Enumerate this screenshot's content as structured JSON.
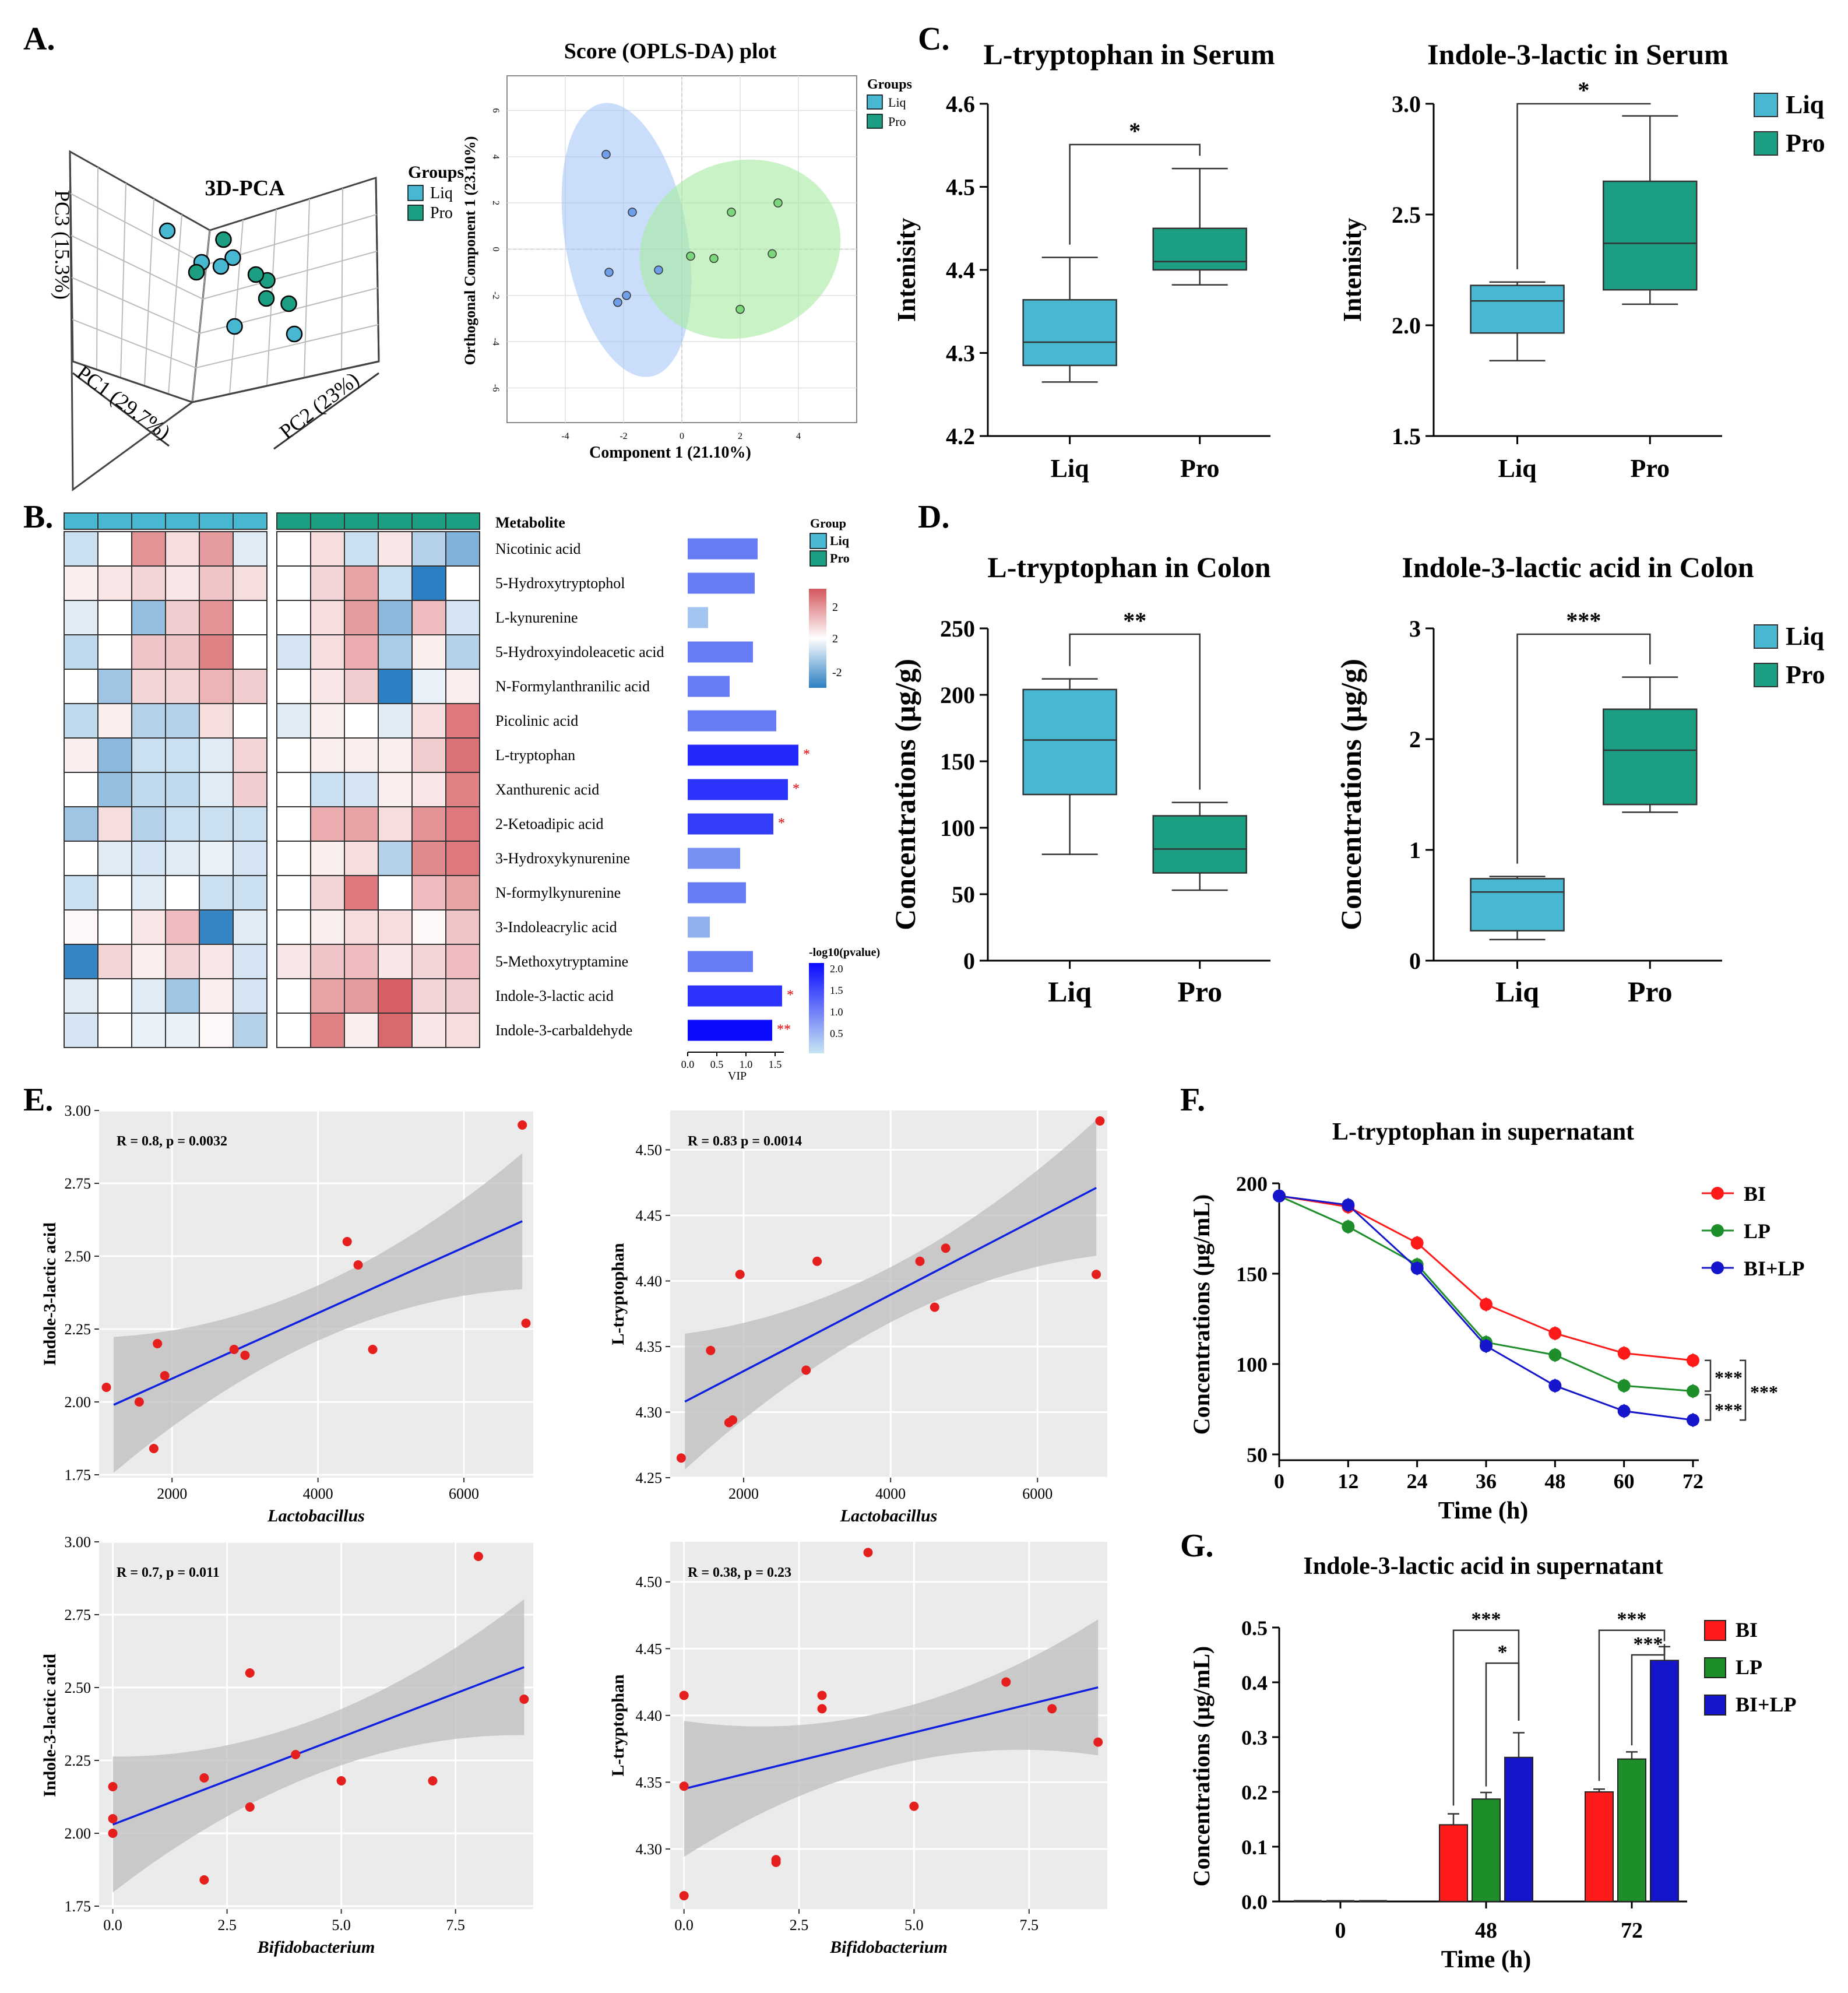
{
  "colors": {
    "liq": "#47B7D2",
    "pro": "#1B9E82",
    "bi": "#FF1A1A",
    "lp": "#1E8E2A",
    "bilp": "#1515CC",
    "reg": "#1020E0",
    "point": "#E51E1E",
    "heat_pos": "#D4585E",
    "heat_neg": "#2B7FC2"
  },
  "panel_letters": {
    "A": "A.",
    "B": "B.",
    "C": "C.",
    "D": "D.",
    "E": "E.",
    "F": "F.",
    "G": "G."
  },
  "chart_data": [
    {
      "id": "pca3d",
      "type": "scatter",
      "title": "3D-PCA",
      "axes": {
        "pc1": "PC1 (29.7%)",
        "pc2": "PC2 (23%)",
        "pc3": "PC3 (15.3%)"
      },
      "legend": {
        "title": "Groups",
        "items": [
          "Liq",
          "Pro"
        ]
      },
      "points": [
        {
          "group": "Liq",
          "x": -0.7,
          "y": 0.5,
          "z": 0.9
        },
        {
          "group": "Liq",
          "x": 0.4,
          "y": 0.9,
          "z": 0.9
        },
        {
          "group": "Liq",
          "x": 0.1,
          "y": 0.5,
          "z": 0.6
        },
        {
          "group": "Liq",
          "x": -0.4,
          "y": -0.2,
          "z": 0.3
        },
        {
          "group": "Liq",
          "x": 0.0,
          "y": -0.5,
          "z": -0.5
        },
        {
          "group": "Liq",
          "x": 0.8,
          "y": -0.8,
          "z": -0.6
        },
        {
          "group": "Pro",
          "x": 0.2,
          "y": 0.7,
          "z": 1.0
        },
        {
          "group": "Pro",
          "x": 0.7,
          "y": 0.2,
          "z": 0.4
        },
        {
          "group": "Pro",
          "x": 0.5,
          "y": 0.1,
          "z": 0.4
        },
        {
          "group": "Pro",
          "x": -0.6,
          "y": -0.6,
          "z": 0.0
        },
        {
          "group": "Pro",
          "x": 0.9,
          "y": -0.2,
          "z": 0.0
        },
        {
          "group": "Pro",
          "x": 0.9,
          "y": 0.9,
          "z": 0.5
        }
      ]
    },
    {
      "id": "oplsda",
      "type": "scatter",
      "title": "Score (OPLS-DA) plot",
      "xlabel": "Component 1 (21.10%)",
      "ylabel": "Orthogonal Component 1 (23.10%)",
      "xlim": [
        -6,
        6
      ],
      "ylim": [
        -7.5,
        7.5
      ],
      "xticks": [
        -4,
        -2,
        0,
        2,
        4
      ],
      "yticks": [
        -6,
        -4,
        -2,
        0,
        2,
        4,
        6
      ],
      "legend": {
        "title": "Groups",
        "items": [
          "Liq",
          "Pro"
        ]
      },
      "series": [
        {
          "name": "Liq",
          "x": [
            -2.6,
            -1.7,
            -2.5,
            -0.8,
            -1.9,
            -2.2
          ],
          "y": [
            4.1,
            1.6,
            -1.0,
            -0.9,
            -2.0,
            -2.3
          ]
        },
        {
          "name": "Pro",
          "x": [
            0.3,
            1.1,
            1.7,
            2.0,
            3.1,
            3.3
          ],
          "y": [
            -0.3,
            -0.4,
            1.6,
            -2.6,
            -0.2,
            2.0
          ]
        }
      ]
    },
    {
      "id": "c_trp",
      "type": "box",
      "title": "L-tryptophan in Serum",
      "ylabel": "Intenisity",
      "ylim": [
        4.2,
        4.6
      ],
      "yticks": [
        "4.2",
        "4.3",
        "4.4",
        "4.5",
        "4.6"
      ],
      "categories": [
        "Liq",
        "Pro"
      ],
      "boxes": [
        {
          "min": 4.265,
          "q1": 4.285,
          "median": 4.313,
          "q3": 4.364,
          "max": 4.415
        },
        {
          "min": 4.382,
          "q1": 4.4,
          "median": 4.41,
          "q3": 4.45,
          "max": 4.522
        }
      ],
      "sig": [
        {
          "from": 0,
          "to": 1,
          "label": "*"
        }
      ],
      "legend": []
    },
    {
      "id": "c_ila",
      "type": "box",
      "title": "Indole-3-lactic in Serum",
      "ylabel": "Intenisity",
      "ylim": [
        1.5,
        3.0
      ],
      "yticks": [
        "1.5",
        "2.0",
        "2.5",
        "3.0"
      ],
      "categories": [
        "Liq",
        "Pro"
      ],
      "boxes": [
        {
          "min": 1.84,
          "q1": 1.965,
          "median": 2.11,
          "q3": 2.18,
          "max": 2.195
        },
        {
          "min": 2.095,
          "q1": 2.16,
          "median": 2.37,
          "q3": 2.65,
          "max": 2.945
        }
      ],
      "sig": [
        {
          "from": 0,
          "to": 1,
          "label": "*"
        }
      ],
      "legend": [
        "Liq",
        "Pro"
      ]
    },
    {
      "id": "d_trp",
      "type": "box",
      "title": "L-tryptophan in Colon",
      "ylabel": "Concentrations (μg/g)",
      "ylim": [
        0,
        250
      ],
      "yticks": [
        "0",
        "50",
        "100",
        "150",
        "200",
        "250"
      ],
      "categories": [
        "Liq",
        "Pro"
      ],
      "boxes": [
        {
          "min": 80,
          "q1": 125,
          "median": 166,
          "q3": 204,
          "max": 212
        },
        {
          "min": 53,
          "q1": 66,
          "median": 84,
          "q3": 109,
          "max": 119
        }
      ],
      "sig": [
        {
          "from": 0,
          "to": 1,
          "label": "**"
        }
      ],
      "legend": []
    },
    {
      "id": "d_ila",
      "type": "box",
      "title": "Indole-3-lactic acid in Colon",
      "ylabel": "Concentrations (μg/g)",
      "ylim": [
        0,
        3
      ],
      "yticks": [
        "0",
        "1",
        "2",
        "3"
      ],
      "categories": [
        "Liq",
        "Pro"
      ],
      "boxes": [
        {
          "min": 0.19,
          "q1": 0.27,
          "median": 0.62,
          "q3": 0.74,
          "max": 0.76
        },
        {
          "min": 1.34,
          "q1": 1.41,
          "median": 1.9,
          "q3": 2.27,
          "max": 2.56
        }
      ],
      "sig": [
        {
          "from": 0,
          "to": 1,
          "label": "***"
        }
      ],
      "legend": [
        "Liq",
        "Pro"
      ]
    },
    {
      "id": "heatmap",
      "type": "heatmap",
      "rowTitle": "Metabolite",
      "groups": [
        "Liq",
        "Liq",
        "Liq",
        "Liq",
        "Liq",
        "Liq",
        "Pro",
        "Pro",
        "Pro",
        "Pro",
        "Pro",
        "Pro"
      ],
      "rows": [
        "Nicotinic acid",
        "5-Hydroxytryptophol",
        "L-kynurenine",
        "5-Hydroxyindoleacetic acid",
        "N-Formylanthranilic acid",
        "Picolinic acid",
        "L-tryptophan",
        "Xanthurenic acid",
        "2-Ketoadipic acid",
        "3-Hydroxykynurenine",
        "N-formylkynurenine",
        "3-Indoleacrylic acid",
        "5-Methoxytryptamine",
        "Indole-3-lactic acid",
        "Indole-3-carbaldehyde"
      ],
      "values": [
        [
          -0.5,
          0,
          1.3,
          0.4,
          1.2,
          -0.3,
          0,
          0.4,
          -0.5,
          0.3,
          -0.7,
          -1.2
        ],
        [
          0.2,
          0.3,
          0.5,
          0.3,
          0.7,
          0.4,
          0,
          0.5,
          1.1,
          -0.5,
          -2.3,
          0
        ],
        [
          -0.3,
          0,
          -1.0,
          0.6,
          1.3,
          0,
          0,
          0.4,
          1.2,
          -1.1,
          0.8,
          -0.4
        ],
        [
          -0.6,
          0,
          0.7,
          0.7,
          1.5,
          0,
          -0.4,
          0.4,
          1.0,
          -0.8,
          0.2,
          -0.7
        ],
        [
          0,
          -0.9,
          0.5,
          0.5,
          0.9,
          0.6,
          0,
          0.3,
          0.6,
          -2.1,
          -0.2,
          0.2
        ],
        [
          -0.6,
          0.2,
          -0.7,
          -0.7,
          0.4,
          0,
          -0.3,
          0.2,
          0,
          -0.3,
          0.4,
          1.6
        ],
        [
          0.2,
          -1.1,
          -0.5,
          -0.5,
          -0.3,
          0.5,
          0,
          0.2,
          0.2,
          0.2,
          0.6,
          1.7
        ],
        [
          0,
          -1.0,
          -0.6,
          -0.6,
          -0.3,
          0.6,
          0,
          -0.5,
          -0.4,
          0.2,
          0.3,
          1.5
        ],
        [
          -0.9,
          0.4,
          -0.7,
          -0.5,
          -0.5,
          -0.5,
          0,
          1.0,
          1.1,
          0.4,
          1.3,
          1.6
        ],
        [
          0,
          -0.3,
          -0.4,
          -0.3,
          -0.2,
          -0.4,
          0,
          0.2,
          0.4,
          -0.7,
          1.4,
          1.6
        ],
        [
          -0.5,
          0,
          -0.3,
          0,
          -0.5,
          -0.5,
          0,
          0.5,
          1.6,
          0,
          0.8,
          1.1
        ],
        [
          0.1,
          0,
          0.3,
          0.8,
          -1.9,
          -0.3,
          0,
          0.2,
          0.4,
          0.4,
          0.1,
          0.7
        ],
        [
          -1.9,
          0.5,
          0.2,
          0.5,
          0.3,
          -0.4,
          0.3,
          0.7,
          0.8,
          0.3,
          0.5,
          0.8
        ],
        [
          -0.3,
          0,
          -0.3,
          -0.9,
          0.2,
          -0.4,
          0,
          1.1,
          1.2,
          1.9,
          0.5,
          0.6
        ],
        [
          -0.4,
          0,
          -0.2,
          -0.2,
          0.1,
          -0.7,
          0,
          1.5,
          0.2,
          1.8,
          0.3,
          0.4
        ]
      ],
      "legend": {
        "title": "Group",
        "items": [
          "Liq",
          "Pro"
        ],
        "scale_labels": [
          "2",
          "2",
          "-2"
        ]
      }
    },
    {
      "id": "vip",
      "type": "bar",
      "xlabel": "VIP",
      "xlim": [
        0,
        2
      ],
      "xticks": [
        "0.0",
        "0.5",
        "1.0",
        "1.5"
      ],
      "categories": [
        "Nicotinic acid",
        "5-Hydroxytryptophol",
        "L-kynurenine",
        "5-Hydroxyindoleacetic acid",
        "N-Formylanthranilic acid",
        "Picolinic acid",
        "L-tryptophan",
        "Xanthurenic acid",
        "2-Ketoadipic acid",
        "3-Hydroxykynurenine",
        "N-formylkynurenine",
        "3-Indoleacrylic acid",
        "5-Methoxytryptamine",
        "Indole-3-lactic acid",
        "Indole-3-carbaldehyde"
      ],
      "values": [
        1.2,
        1.15,
        0.35,
        1.12,
        0.72,
        1.52,
        1.9,
        1.72,
        1.47,
        0.9,
        1.0,
        0.38,
        1.12,
        1.62,
        1.45
      ],
      "pvalue": [
        0.9,
        0.9,
        0.2,
        0.9,
        0.9,
        0.9,
        1.7,
        1.6,
        1.5,
        0.7,
        0.9,
        0.4,
        0.9,
        1.6,
        2.0
      ],
      "stars": [
        "",
        "",
        "",
        "",
        "",
        "",
        "*",
        "*",
        "*",
        "",
        "",
        "",
        "",
        "*",
        "**"
      ],
      "legend": {
        "title": "-log10(pvalue)",
        "ticks": [
          "2.0",
          "1.5",
          "1.0",
          "0.5"
        ]
      }
    },
    {
      "id": "e1",
      "type": "scatter",
      "stat": "R = 0.8, p = 0.0032",
      "xlabel": "Lactobacillus",
      "ylabel": "Indole-3-lactic acid",
      "xlim": [
        1000,
        6950
      ],
      "ylim": [
        1.74,
        3.0
      ],
      "xticks": [
        "2000",
        "4000",
        "6000"
      ],
      "yticks": [
        "1.75",
        "2.00",
        "2.25",
        "2.50",
        "2.75",
        "3.00"
      ],
      "x": [
        1100,
        1550,
        1750,
        1800,
        1900,
        2850,
        3000,
        4400,
        4550,
        4750,
        6800,
        6850
      ],
      "y": [
        2.05,
        2.0,
        1.84,
        2.2,
        2.09,
        2.18,
        2.16,
        2.55,
        2.47,
        2.18,
        2.95,
        2.27
      ],
      "fit": {
        "x": [
          1200,
          6800
        ],
        "y": [
          1.99,
          2.62
        ]
      }
    },
    {
      "id": "e2",
      "type": "scatter",
      "stat": "R = 0.83  p = 0.0014",
      "xlabel": "Lactobacillus",
      "ylabel": "L-tryptophan",
      "xlim": [
        1000,
        6950
      ],
      "ylim": [
        4.25,
        4.53
      ],
      "xticks": [
        "2000",
        "4000",
        "6000"
      ],
      "yticks": [
        "4.25",
        "4.30",
        "4.35",
        "4.40",
        "4.45",
        "4.50"
      ],
      "x": [
        1150,
        1550,
        1800,
        1850,
        1950,
        2850,
        3000,
        4400,
        4600,
        4750,
        6800,
        6850
      ],
      "y": [
        4.265,
        4.347,
        4.292,
        4.294,
        4.405,
        4.332,
        4.415,
        4.415,
        4.38,
        4.425,
        4.405,
        4.522
      ],
      "fit": {
        "x": [
          1200,
          6800
        ],
        "y": [
          4.308,
          4.471
        ]
      }
    },
    {
      "id": "e3",
      "type": "scatter",
      "stat": "R = 0.7, p = 0.011",
      "xlabel": "Bifidobacterium",
      "ylabel": "Indole-3-lactic acid",
      "xlim": [
        -0.3,
        9.2
      ],
      "ylim": [
        1.74,
        3.0
      ],
      "xticks": [
        "0.0",
        "2.5",
        "5.0",
        "7.5"
      ],
      "yticks": [
        "1.75",
        "2.00",
        "2.25",
        "2.50",
        "2.75",
        "3.00"
      ],
      "x": [
        0,
        0,
        0,
        2,
        2,
        3,
        3,
        4,
        5,
        7,
        8,
        9
      ],
      "y": [
        2.16,
        2.05,
        2.0,
        2.19,
        1.84,
        2.55,
        2.09,
        2.27,
        2.18,
        2.18,
        2.95,
        2.46
      ],
      "fit": {
        "x": [
          0,
          9
        ],
        "y": [
          2.03,
          2.57
        ]
      }
    },
    {
      "id": "e4",
      "type": "scatter",
      "stat": "R = 0.38, p = 0.23",
      "xlabel": "Bifidobacterium",
      "ylabel": "L-tryptophan",
      "xlim": [
        -0.3,
        9.2
      ],
      "ylim": [
        4.255,
        4.53
      ],
      "xticks": [
        "0.0",
        "2.5",
        "5.0",
        "7.5"
      ],
      "yticks": [
        "4.30",
        "4.35",
        "4.40",
        "4.45",
        "4.50"
      ],
      "x": [
        0,
        0,
        0,
        2,
        2,
        3,
        3,
        4,
        5,
        7,
        8,
        9
      ],
      "y": [
        4.415,
        4.347,
        4.265,
        4.292,
        4.29,
        4.405,
        4.415,
        4.522,
        4.332,
        4.425,
        4.405,
        4.38
      ],
      "fit": {
        "x": [
          0,
          9
        ],
        "y": [
          4.345,
          4.421
        ]
      }
    },
    {
      "id": "f",
      "type": "line",
      "title": "L-tryptophan in supernatant",
      "xlabel": "Time (h)",
      "ylabel": "Concentrations (μg/mL)",
      "x": [
        0,
        12,
        24,
        36,
        48,
        60,
        72
      ],
      "xlim": [
        0,
        72
      ],
      "ylim": [
        50,
        200
      ],
      "xticks": [
        "0",
        "12",
        "24",
        "36",
        "48",
        "60",
        "72"
      ],
      "yticks": [
        "50",
        "100",
        "150",
        "200"
      ],
      "series": [
        {
          "name": "BI",
          "values": [
            193,
            187,
            167,
            133,
            117,
            106,
            102
          ]
        },
        {
          "name": "LP",
          "values": [
            193,
            176,
            155,
            112,
            105,
            88,
            85
          ]
        },
        {
          "name": "BI+LP",
          "values": [
            193,
            188,
            153,
            110,
            88,
            74,
            69
          ]
        }
      ],
      "sig": [
        "***",
        "***",
        "***"
      ]
    },
    {
      "id": "g",
      "type": "bar",
      "title": "Indole-3-lactic acid in supernatant",
      "xlabel": "Time (h)",
      "ylabel": "Concentrations (μg/mL)",
      "categories": [
        "0",
        "48",
        "72"
      ],
      "ylim": [
        0,
        0.5
      ],
      "yticks": [
        "0.0",
        "0.1",
        "0.2",
        "0.3",
        "0.4",
        "0.5"
      ],
      "series": [
        {
          "name": "BI",
          "values": [
            0,
            0.14,
            0.2
          ],
          "err": [
            0,
            0.02,
            0.005
          ]
        },
        {
          "name": "LP",
          "values": [
            0,
            0.187,
            0.26
          ],
          "err": [
            0,
            0.012,
            0.013
          ]
        },
        {
          "name": "BI+LP",
          "values": [
            0,
            0.263,
            0.44
          ],
          "err": [
            0,
            0.045,
            0.025
          ]
        }
      ],
      "sig": [
        "***",
        "*",
        "***",
        "***"
      ]
    }
  ]
}
